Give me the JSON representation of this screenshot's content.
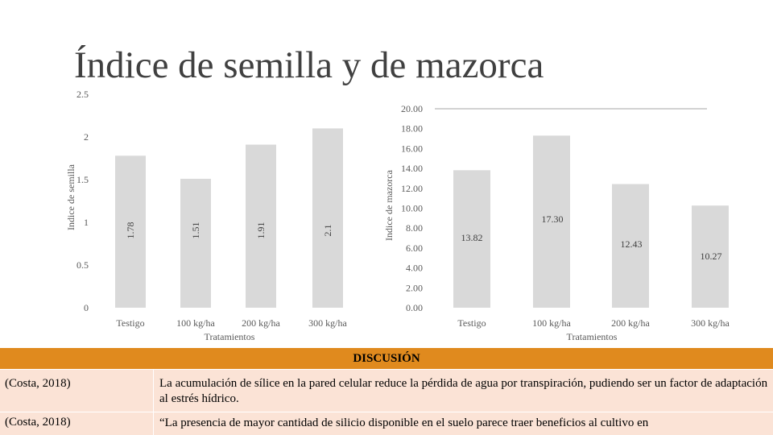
{
  "slide_title": "Índice de semilla y de mazorca",
  "chart_data": [
    {
      "type": "bar",
      "categories": [
        "Testigo",
        "100 kg/ha",
        "200 kg/ha",
        "300 kg/ha"
      ],
      "values": [
        1.78,
        1.51,
        1.91,
        2.1
      ],
      "value_labels": [
        "1.78",
        "1.51",
        "1.91",
        "2.1"
      ],
      "ylabel": "Indice de semilla",
      "xlabel": "Tratamientos",
      "ylim": [
        0,
        2.5
      ],
      "yticks": [
        "0",
        "0.5",
        "1",
        "1.5",
        "2",
        "2.5"
      ],
      "grid": false,
      "bar_color": "#d9d9d9"
    },
    {
      "type": "bar",
      "categories": [
        "Testigo",
        "100 kg/ha",
        "200 kg/ha",
        "300 kg/ha"
      ],
      "values": [
        13.82,
        17.3,
        12.43,
        10.27
      ],
      "value_labels": [
        "13.82",
        "17.30",
        "12.43",
        "10.27"
      ],
      "ylabel": "Indice de mazorca",
      "xlabel": "Tratamientos",
      "ylim": [
        0,
        20
      ],
      "yticks": [
        "0.00",
        "2.00",
        "4.00",
        "6.00",
        "8.00",
        "10.00",
        "12.00",
        "14.00",
        "16.00",
        "18.00",
        "20.00"
      ],
      "grid": false,
      "bar_color": "#d9d9d9"
    }
  ],
  "discussion": {
    "heading": "DISCUSIÓN",
    "heading_color": "#e08a1e",
    "row_color": "#fbe3d6",
    "rows": [
      {
        "source": "(Costa, 2018)",
        "text": "La acumulación de sílice en la pared celular reduce la pérdida de agua por transpiración, pudiendo ser un factor de adaptación al estrés hídrico."
      },
      {
        "source": "(Costa, 2018)",
        "text": "“La presencia de mayor cantidad de silicio disponible en el suelo parece traer beneficios al cultivo en"
      }
    ]
  }
}
